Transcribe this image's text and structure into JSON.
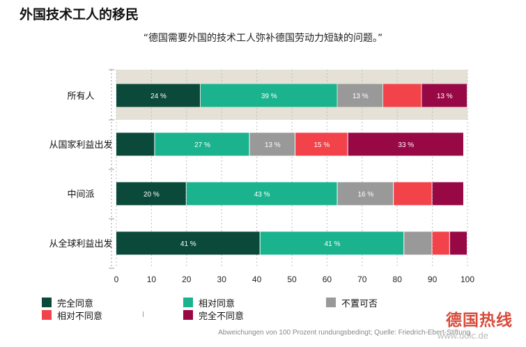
{
  "title": "外国技术工人的移民",
  "subtitle": "“德国需要外国的技术工人弥补德国劳动力短缺的问题。”",
  "source": "Abweichungen von 100 Prozent rundungsbedingt; Quelle: Friedrich-Ebert-Stiftung",
  "watermark": "德国热线",
  "watermark_url": "www.dolc.de",
  "legend": [
    {
      "label": "完全同意",
      "color": "#0b4a3a"
    },
    {
      "label": "相对同意",
      "color": "#1ab38d"
    },
    {
      "label": "不置可否",
      "color": "#999999"
    },
    {
      "label": "相对不同意",
      "color": "#f2424a"
    },
    {
      "label": "完全不同意",
      "color": "#980845"
    }
  ],
  "chart_data": {
    "type": "bar",
    "orientation": "horizontal",
    "stacked": true,
    "categories": [
      "所有人",
      "从国家利益出发",
      "中间派",
      "从全球利益出发"
    ],
    "series": [
      {
        "name": "完全同意",
        "color": "#0b4a3a",
        "values": [
          24,
          11,
          20,
          41
        ]
      },
      {
        "name": "相对同意",
        "color": "#1ab38d",
        "values": [
          39,
          27,
          43,
          41
        ]
      },
      {
        "name": "不置可否",
        "color": "#999999",
        "values": [
          13,
          13,
          16,
          8
        ]
      },
      {
        "name": "相对不同意",
        "color": "#f2424a",
        "values": [
          11,
          15,
          11,
          5
        ]
      },
      {
        "name": "完全不同意",
        "color": "#980845",
        "values": [
          13,
          33,
          9,
          5
        ]
      }
    ],
    "data_labels": [
      [
        "24 %",
        "39 %",
        "13 %",
        "",
        "13 %"
      ],
      [
        "",
        "27 %",
        "13 %",
        "15 %",
        "33 %"
      ],
      [
        "20 %",
        "43 %",
        "16 %",
        "",
        ""
      ],
      [
        "41 %",
        "41 %",
        "",
        "",
        ""
      ]
    ],
    "xlim": [
      0,
      100
    ],
    "xticks": [
      "0",
      "10",
      "20",
      "30",
      "40",
      "50",
      "60",
      "70",
      "80",
      "90",
      "100"
    ],
    "highlight_category": "所有人",
    "highlight_color": "#e5e1d7",
    "grid": "vertical dashed",
    "legend_position": "bottom"
  }
}
